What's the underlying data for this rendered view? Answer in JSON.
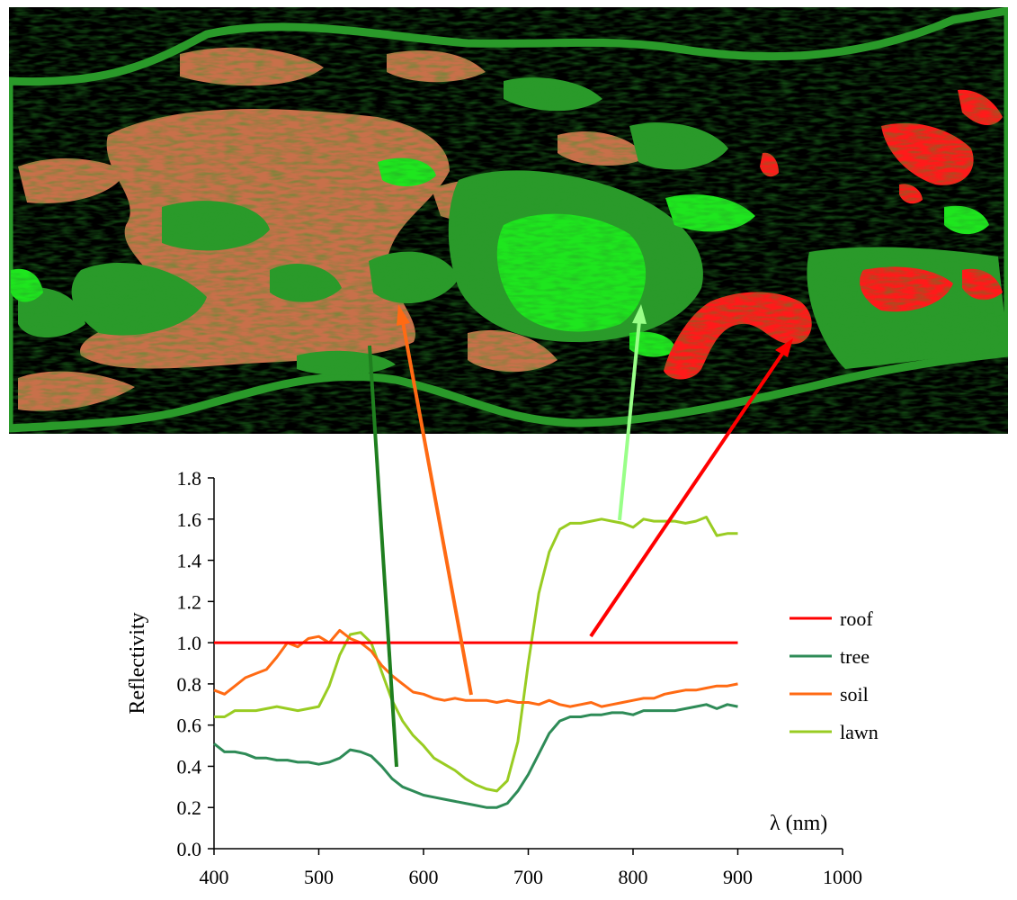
{
  "colors": {
    "roof": "#ff0000",
    "tree": "#2e8b57",
    "soil": "#ff6a13",
    "lawn": "#99cc22",
    "map_background": "#000000",
    "map_soil": "#c8704a",
    "map_tree": "#2a9a2a",
    "map_lawn": "#1ee61e",
    "map_roof": "#ff1a1a",
    "pointer_lawn": "#99ff88"
  },
  "classification_map": {
    "classes": [
      "background",
      "soil",
      "tree",
      "lawn",
      "roof"
    ]
  },
  "chart_data": {
    "type": "line",
    "title": "",
    "xlabel": "λ (nm)",
    "ylabel": "Reflectivity",
    "xlim": [
      400,
      1000
    ],
    "ylim": [
      0,
      1.8
    ],
    "x_ticks": [
      400,
      500,
      600,
      700,
      800,
      900,
      1000
    ],
    "y_ticks": [
      "0.0",
      "0.2",
      "0.4",
      "0.6",
      "0.8",
      "1.0",
      "1.2",
      "1.4",
      "1.6",
      "1.8"
    ],
    "grid": false,
    "legend_position": "right",
    "series": [
      {
        "name": "roof",
        "color": "#ff0000",
        "x": [
          400,
          900
        ],
        "y": [
          1.0,
          1.0
        ]
      },
      {
        "name": "tree",
        "color": "#2e8b57",
        "x": [
          400,
          410,
          420,
          430,
          440,
          450,
          460,
          470,
          480,
          490,
          500,
          510,
          520,
          530,
          540,
          550,
          560,
          570,
          580,
          590,
          600,
          610,
          620,
          630,
          640,
          650,
          660,
          670,
          680,
          690,
          700,
          710,
          720,
          730,
          740,
          750,
          760,
          770,
          780,
          790,
          800,
          810,
          820,
          830,
          840,
          850,
          860,
          870,
          880,
          890,
          900
        ],
        "y": [
          0.51,
          0.47,
          0.47,
          0.46,
          0.44,
          0.44,
          0.43,
          0.43,
          0.42,
          0.42,
          0.41,
          0.42,
          0.44,
          0.48,
          0.47,
          0.45,
          0.4,
          0.34,
          0.3,
          0.28,
          0.26,
          0.25,
          0.24,
          0.23,
          0.22,
          0.21,
          0.2,
          0.2,
          0.22,
          0.28,
          0.36,
          0.46,
          0.56,
          0.62,
          0.64,
          0.64,
          0.65,
          0.65,
          0.66,
          0.66,
          0.65,
          0.67,
          0.67,
          0.67,
          0.67,
          0.68,
          0.69,
          0.7,
          0.68,
          0.7,
          0.69
        ]
      },
      {
        "name": "soil",
        "color": "#ff6a13",
        "x": [
          400,
          410,
          420,
          430,
          440,
          450,
          460,
          470,
          480,
          490,
          500,
          510,
          520,
          530,
          540,
          550,
          560,
          570,
          580,
          590,
          600,
          610,
          620,
          630,
          640,
          650,
          660,
          670,
          680,
          690,
          700,
          710,
          720,
          730,
          740,
          750,
          760,
          770,
          780,
          790,
          800,
          810,
          820,
          830,
          840,
          850,
          860,
          870,
          880,
          890,
          900
        ],
        "y": [
          0.77,
          0.75,
          0.79,
          0.83,
          0.85,
          0.87,
          0.93,
          1.0,
          0.98,
          1.02,
          1.03,
          1.0,
          1.06,
          1.02,
          1.0,
          0.96,
          0.89,
          0.84,
          0.8,
          0.76,
          0.75,
          0.73,
          0.72,
          0.73,
          0.72,
          0.72,
          0.72,
          0.71,
          0.72,
          0.71,
          0.71,
          0.7,
          0.72,
          0.7,
          0.69,
          0.7,
          0.71,
          0.69,
          0.7,
          0.71,
          0.72,
          0.73,
          0.73,
          0.75,
          0.76,
          0.77,
          0.77,
          0.78,
          0.79,
          0.79,
          0.8
        ]
      },
      {
        "name": "lawn",
        "color": "#99cc22",
        "x": [
          400,
          410,
          420,
          430,
          440,
          450,
          460,
          470,
          480,
          490,
          500,
          510,
          520,
          530,
          540,
          550,
          560,
          570,
          580,
          590,
          600,
          610,
          620,
          630,
          640,
          650,
          660,
          670,
          680,
          690,
          700,
          710,
          720,
          730,
          740,
          750,
          760,
          770,
          780,
          790,
          800,
          810,
          820,
          830,
          840,
          850,
          860,
          870,
          880,
          890,
          900
        ],
        "y": [
          0.64,
          0.64,
          0.67,
          0.67,
          0.67,
          0.68,
          0.69,
          0.68,
          0.67,
          0.68,
          0.69,
          0.79,
          0.94,
          1.04,
          1.05,
          1.0,
          0.86,
          0.72,
          0.62,
          0.55,
          0.5,
          0.44,
          0.41,
          0.38,
          0.34,
          0.31,
          0.29,
          0.28,
          0.33,
          0.52,
          0.9,
          1.24,
          1.44,
          1.55,
          1.58,
          1.58,
          1.59,
          1.6,
          1.59,
          1.58,
          1.56,
          1.6,
          1.59,
          1.59,
          1.59,
          1.58,
          1.59,
          1.61,
          1.52,
          1.53,
          1.53
        ]
      }
    ]
  }
}
